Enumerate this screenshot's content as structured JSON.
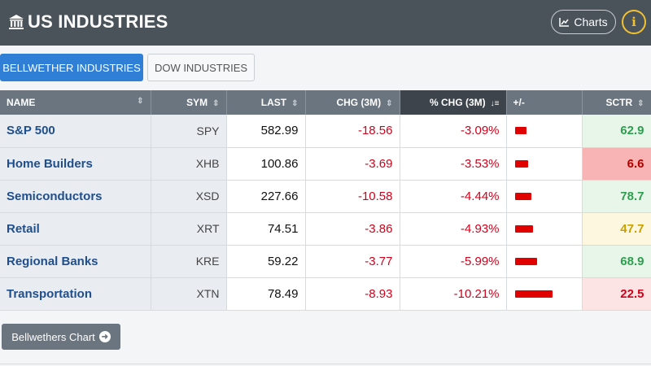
{
  "header": {
    "title": "US INDUSTRIES",
    "charts_label": "Charts",
    "info_label": "i"
  },
  "tabs": [
    {
      "label": "BELLWETHER INDUSTRIES",
      "active": true
    },
    {
      "label": "DOW INDUSTRIES",
      "active": false
    }
  ],
  "table": {
    "columns": [
      "NAME",
      "SYM",
      "LAST",
      "CHG (3M)",
      "% CHG (3M)",
      "+/-",
      "SCTR"
    ],
    "rows": [
      {
        "name": "S&P 500",
        "sym": "SPY",
        "last": "582.99",
        "chg": "-18.56",
        "pct": "-3.09%",
        "pct_value": -3.09,
        "sctr": "62.9"
      },
      {
        "name": "Home Builders",
        "sym": "XHB",
        "last": "100.86",
        "chg": "-3.69",
        "pct": "-3.53%",
        "pct_value": -3.53,
        "sctr": "6.6"
      },
      {
        "name": "Semiconductors",
        "sym": "XSD",
        "last": "227.66",
        "chg": "-10.58",
        "pct": "-4.44%",
        "pct_value": -4.44,
        "sctr": "78.7"
      },
      {
        "name": "Retail",
        "sym": "XRT",
        "last": "74.51",
        "chg": "-3.86",
        "pct": "-4.93%",
        "pct_value": -4.93,
        "sctr": "47.7"
      },
      {
        "name": "Regional Banks",
        "sym": "KRE",
        "last": "59.22",
        "chg": "-3.77",
        "pct": "-5.99%",
        "pct_value": -5.99,
        "sctr": "68.9"
      },
      {
        "name": "Transportation",
        "sym": "XTN",
        "last": "78.49",
        "chg": "-8.93",
        "pct": "-10.21%",
        "pct_value": -10.21,
        "sctr": "22.5"
      }
    ]
  },
  "colors": {
    "sctr_green_bg": "#e8f6ea",
    "sctr_green_text": "#2e9e4f",
    "sctr_red_strong_bg": "#f8b4b4",
    "sctr_red_strong_text": "#b00000",
    "sctr_yellow_bg": "#fdf7e0",
    "sctr_yellow_text": "#c9a000",
    "sctr_red_light_bg": "#fde4e4",
    "sctr_red_light_text": "#d0021b"
  },
  "bottom_button": {
    "label": "Bellwethers Chart"
  }
}
